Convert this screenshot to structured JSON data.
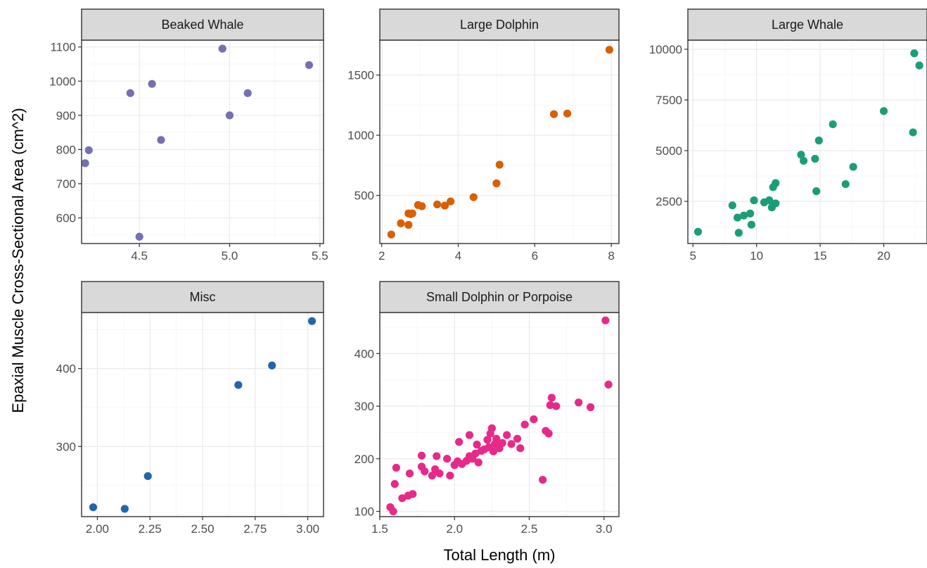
{
  "chart_data": {
    "type": "scatter",
    "xlabel": "Total Length (m)",
    "ylabel": "Epaxial Muscle Cross-Sectional Area (cm^2)",
    "grid": true,
    "panels": [
      {
        "title": "Beaked Whale",
        "color": "#7570b3",
        "xlim": [
          4.18,
          5.52
        ],
        "ylim": [
          525,
          1120
        ],
        "xticks": [
          4.5,
          5.0,
          5.5
        ],
        "xtick_labels": [
          "4.5",
          "5.0",
          "5.5"
        ],
        "yticks": [
          600,
          700,
          800,
          900,
          1000,
          1100
        ],
        "ytick_labels": [
          "600",
          "700",
          "800",
          "900",
          "1000",
          "1100"
        ],
        "points": [
          [
            4.2,
            760
          ],
          [
            4.22,
            798
          ],
          [
            4.45,
            965
          ],
          [
            4.5,
            545
          ],
          [
            4.57,
            992
          ],
          [
            4.62,
            828
          ],
          [
            4.96,
            1095
          ],
          [
            5.0,
            900
          ],
          [
            5.1,
            965
          ],
          [
            5.44,
            1047
          ]
        ]
      },
      {
        "title": "Large Dolphin",
        "color": "#d95f02",
        "xlim": [
          1.95,
          8.2
        ],
        "ylim": [
          100,
          1790
        ],
        "xticks": [
          2,
          4,
          6,
          8
        ],
        "xtick_labels": [
          "2",
          "4",
          "6",
          "8"
        ],
        "yticks": [
          500,
          1000,
          1500
        ],
        "ytick_labels": [
          "500",
          "1000",
          "1500"
        ],
        "points": [
          [
            2.25,
            175
          ],
          [
            2.5,
            268
          ],
          [
            2.7,
            255
          ],
          [
            2.7,
            350
          ],
          [
            2.75,
            345
          ],
          [
            2.8,
            350
          ],
          [
            2.95,
            420
          ],
          [
            3.05,
            410
          ],
          [
            3.45,
            425
          ],
          [
            3.65,
            415
          ],
          [
            3.8,
            450
          ],
          [
            4.4,
            485
          ],
          [
            5.0,
            600
          ],
          [
            5.08,
            755
          ],
          [
            6.5,
            1175
          ],
          [
            6.85,
            1180
          ],
          [
            7.95,
            1710
          ]
        ]
      },
      {
        "title": "Large Whale",
        "color": "#1b9e77",
        "xlim": [
          4.6,
          23.4
        ],
        "ylim": [
          420,
          10450
        ],
        "xticks": [
          5,
          10,
          15,
          20
        ],
        "xtick_labels": [
          "5",
          "10",
          "15",
          "20"
        ],
        "yticks": [
          2500,
          5000,
          7500,
          10000
        ],
        "ytick_labels": [
          "2500",
          "5000",
          "7500",
          "10000"
        ],
        "points": [
          [
            5.4,
            1000
          ],
          [
            8.1,
            2300
          ],
          [
            8.5,
            1700
          ],
          [
            8.6,
            950
          ],
          [
            9.0,
            1800
          ],
          [
            9.5,
            1900
          ],
          [
            9.6,
            1350
          ],
          [
            9.8,
            2550
          ],
          [
            10.6,
            2450
          ],
          [
            11.0,
            2550
          ],
          [
            11.2,
            2200
          ],
          [
            11.3,
            3200
          ],
          [
            11.5,
            2400
          ],
          [
            11.5,
            3400
          ],
          [
            13.5,
            4800
          ],
          [
            13.7,
            4500
          ],
          [
            14.6,
            4600
          ],
          [
            14.7,
            3000
          ],
          [
            14.9,
            5500
          ],
          [
            16.0,
            6300
          ],
          [
            17.0,
            3350
          ],
          [
            17.6,
            4200
          ],
          [
            20.0,
            6950
          ],
          [
            22.3,
            5900
          ],
          [
            22.4,
            9800
          ],
          [
            22.8,
            9200
          ]
        ]
      },
      {
        "title": "Misc",
        "color": "#2166ac",
        "xlim": [
          1.925,
          3.075
        ],
        "ylim": [
          210,
          472
        ],
        "xticks": [
          2.0,
          2.25,
          2.5,
          2.75,
          3.0
        ],
        "xtick_labels": [
          "2.00",
          "2.25",
          "2.50",
          "2.75",
          "3.00"
        ],
        "yticks": [
          300,
          400
        ],
        "ytick_labels": [
          "300",
          "400"
        ],
        "points": [
          [
            1.98,
            222
          ],
          [
            2.13,
            220
          ],
          [
            2.24,
            262
          ],
          [
            2.67,
            379
          ],
          [
            2.83,
            404
          ],
          [
            3.02,
            461
          ]
        ]
      },
      {
        "title": "Small Dolphin or Porpoise",
        "color": "#e7298a",
        "xlim": [
          1.5,
          3.1
        ],
        "ylim": [
          90,
          478
        ],
        "xticks": [
          1.5,
          2.0,
          2.5,
          3.0
        ],
        "xtick_labels": [
          "1.5",
          "2.0",
          "2.5",
          "3.0"
        ],
        "yticks": [
          100,
          200,
          300,
          400
        ],
        "ytick_labels": [
          "100",
          "200",
          "300",
          "400"
        ],
        "points": [
          [
            1.57,
            108
          ],
          [
            1.59,
            100
          ],
          [
            1.6,
            152
          ],
          [
            1.61,
            183
          ],
          [
            1.65,
            125
          ],
          [
            1.69,
            130
          ],
          [
            1.7,
            172
          ],
          [
            1.72,
            133
          ],
          [
            1.78,
            206
          ],
          [
            1.78,
            185
          ],
          [
            1.8,
            176
          ],
          [
            1.85,
            168
          ],
          [
            1.87,
            180
          ],
          [
            1.88,
            205
          ],
          [
            1.9,
            172
          ],
          [
            1.95,
            200
          ],
          [
            1.97,
            168
          ],
          [
            2.0,
            188
          ],
          [
            2.02,
            195
          ],
          [
            2.03,
            232
          ],
          [
            2.05,
            190
          ],
          [
            2.08,
            196
          ],
          [
            2.1,
            205
          ],
          [
            2.1,
            245
          ],
          [
            2.12,
            200
          ],
          [
            2.14,
            210
          ],
          [
            2.15,
            227
          ],
          [
            2.16,
            193
          ],
          [
            2.18,
            215
          ],
          [
            2.2,
            218
          ],
          [
            2.22,
            236
          ],
          [
            2.23,
            222
          ],
          [
            2.24,
            248
          ],
          [
            2.25,
            258
          ],
          [
            2.26,
            214
          ],
          [
            2.27,
            228
          ],
          [
            2.28,
            238
          ],
          [
            2.3,
            220
          ],
          [
            2.32,
            230
          ],
          [
            2.35,
            245
          ],
          [
            2.38,
            228
          ],
          [
            2.42,
            238
          ],
          [
            2.44,
            220
          ],
          [
            2.47,
            265
          ],
          [
            2.53,
            275
          ],
          [
            2.59,
            160
          ],
          [
            2.61,
            253
          ],
          [
            2.63,
            248
          ],
          [
            2.64,
            302
          ],
          [
            2.65,
            316
          ],
          [
            2.68,
            300
          ],
          [
            2.83,
            307
          ],
          [
            2.91,
            298
          ],
          [
            3.01,
            463
          ],
          [
            3.03,
            341
          ]
        ]
      }
    ]
  }
}
